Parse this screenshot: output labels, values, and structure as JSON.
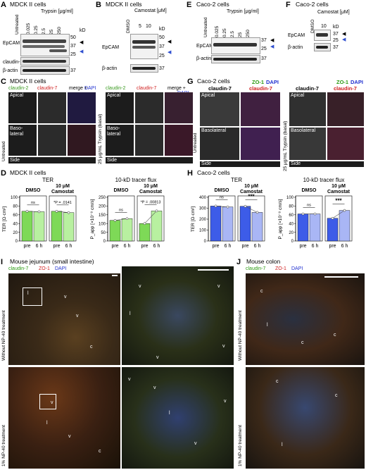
{
  "panels": {
    "A": {
      "letter": "A",
      "title": "MDCK II cells",
      "treatment": "Trypsin [μg/ml]",
      "lanes": [
        "Untreated",
        "0.025",
        "0.25",
        "2.5",
        "25",
        "250"
      ],
      "kd": "kD",
      "markers": [
        "50",
        "37",
        "25",
        "37"
      ],
      "blots": [
        "EpCAM",
        "claudin-2",
        "β-actin"
      ]
    },
    "B": {
      "letter": "B",
      "title": "MDCK II cells",
      "treatment": "Camostat [μM]",
      "lanes": [
        "DMSO",
        "5",
        "10"
      ],
      "kd": "kD",
      "markers": [
        "50",
        "37",
        "25",
        "37"
      ],
      "blots": [
        "EpCAM",
        "β-actin"
      ]
    },
    "E": {
      "letter": "E",
      "title": "Caco-2 cells",
      "treatment": "Trypsin [μg/ml]",
      "lanes": [
        "Untreated",
        "0.025",
        "0.25",
        "2.5",
        "25",
        "250"
      ],
      "kd": "kD",
      "markers": [
        "37",
        "25",
        "37"
      ],
      "blots": [
        "EpCAM",
        "β-actin"
      ]
    },
    "F": {
      "letter": "F",
      "title": "Caco-2 cells",
      "treatment": "Camostat [μM]",
      "lanes": [
        "DMSO",
        "10"
      ],
      "kd": "kD",
      "markers": [
        "37",
        "25",
        "37"
      ],
      "blots": [
        "EpCAM",
        "β-actin"
      ]
    },
    "C": {
      "letter": "C",
      "title": "MDCK II cells",
      "stains": [
        "claudin-2",
        "claudin-7",
        "merge +",
        "DAPI"
      ],
      "rows_left": [
        "Apical",
        "Baso-lateral",
        "Side"
      ],
      "side_left": "Untreated",
      "side_right": "25 μg/mL Trypsin (basal)",
      "rows_right": [
        "Apical",
        "Baso-lateral",
        "Side"
      ]
    },
    "G": {
      "letter": "G",
      "title": "Caco-2 cells",
      "stains": [
        "claudin-7",
        "ZO-1",
        "DAPI",
        "claudin-7"
      ],
      "rows": [
        "Apical",
        "Basolateral",
        "Side"
      ],
      "side_left": "Untreated",
      "side_right": "25 μg/mL Trypsin (basal)"
    },
    "D": {
      "letter": "D",
      "title": "MDCK II cells"
    },
    "H": {
      "letter": "H",
      "title": "Caco-2 cells"
    },
    "I": {
      "letter": "I",
      "title": "Mouse jejunum (small intestine)",
      "stains": [
        "claudin-7",
        "ZO-1",
        "DAPI"
      ],
      "side_top": "Without NP-40 treatment",
      "side_bottom": "1% NP-40 treatment",
      "labels": [
        "l",
        "v",
        "v",
        "c",
        "v",
        "v",
        "l",
        "v",
        "v",
        "v",
        "l",
        "v",
        "c",
        "v",
        "v",
        "l",
        "v",
        "v"
      ]
    },
    "J": {
      "letter": "J",
      "title": "Mouse colon",
      "stains": [
        "claudin-7",
        "ZO-1",
        "DAPI"
      ],
      "labels": [
        "c",
        "l",
        "c",
        "c",
        "c",
        "c",
        "l"
      ]
    }
  },
  "chart_data": [
    {
      "id": "D-TER",
      "type": "bar",
      "title": "TER",
      "ylabel": "TER [Ω·cm²]",
      "ylim": [
        0,
        100
      ],
      "yticks": [
        0,
        20,
        40,
        60,
        80,
        100
      ],
      "groups": [
        {
          "name": "DMSO",
          "categories": [
            "pre",
            "6 h"
          ],
          "values": [
            68,
            67
          ],
          "sig": "ns"
        },
        {
          "name": "10 μM Camostat",
          "categories": [
            "pre",
            "6 h"
          ],
          "values": [
            68,
            65
          ],
          "sig": "*P = .0141"
        }
      ],
      "colors": [
        "#7ed957",
        "#b8f0a0"
      ]
    },
    {
      "id": "D-flux",
      "type": "bar",
      "title": "10-kD tracer flux",
      "ylabel": "P_app [×10⁻⁸ cm/s]",
      "ylim": [
        0,
        250
      ],
      "yticks": [
        0,
        50,
        100,
        150,
        200,
        250
      ],
      "groups": [
        {
          "name": "DMSO",
          "categories": [
            "pre",
            "6 h"
          ],
          "values": [
            118,
            128
          ],
          "sig": "ns"
        },
        {
          "name": "10 μM Camostat",
          "categories": [
            "pre",
            "6 h"
          ],
          "values": [
            100,
            172
          ],
          "sig": "*P = .00813"
        }
      ],
      "colors": [
        "#7ed957",
        "#b8f0a0"
      ]
    },
    {
      "id": "H-TER",
      "type": "bar",
      "title": "TER",
      "ylabel": "TER [Ω·cm²]",
      "ylim": [
        0,
        400
      ],
      "yticks": [
        0,
        100,
        200,
        300,
        400
      ],
      "groups": [
        {
          "name": "DMSO",
          "categories": [
            "pre",
            "6 h"
          ],
          "values": [
            320,
            312
          ],
          "sig": "ns"
        },
        {
          "name": "10 μM Camostat",
          "categories": [
            "pre",
            "6 h"
          ],
          "values": [
            318,
            262
          ],
          "sig": "***"
        }
      ],
      "colors": [
        "#3d5ce8",
        "#a9b6f5"
      ]
    },
    {
      "id": "H-flux",
      "type": "bar",
      "title": "10-kD tracer flux",
      "ylabel": "P_app [×10⁻⁸ cm/s]",
      "ylim": [
        0,
        100
      ],
      "yticks": [
        0,
        20,
        40,
        60,
        80,
        100
      ],
      "groups": [
        {
          "name": "DMSO",
          "categories": [
            "pre",
            "6 h"
          ],
          "values": [
            62,
            62
          ],
          "sig": "ns"
        },
        {
          "name": "10 μM Camostat",
          "categories": [
            "pre",
            "6 h"
          ],
          "values": [
            52,
            70
          ],
          "sig": "***"
        }
      ],
      "colors": [
        "#3d5ce8",
        "#a9b6f5"
      ]
    }
  ]
}
